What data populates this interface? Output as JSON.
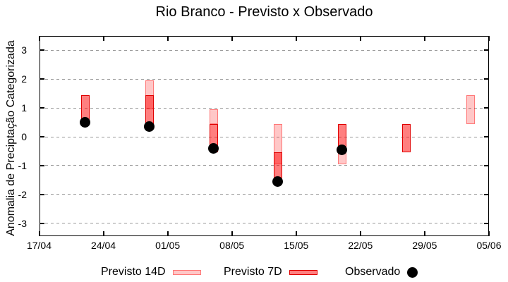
{
  "title": "Rio Branco - Previsto x Observado",
  "colors": {
    "background": "#ffffff",
    "axis": "#000000",
    "grid": "#999999",
    "forecast_14d_fill": "rgba(255,0,0,0.22)",
    "forecast_14d_border": "rgba(255,0,0,0.4)",
    "forecast_7d_fill": "rgba(255,0,0,0.5)",
    "forecast_7d_border": "#e00000",
    "observed": "#000000"
  },
  "chart_data": {
    "type": "bar",
    "subtype": "range-bars-with-scatter",
    "title": "Rio Branco - Previsto x Observado",
    "xlabel": "",
    "ylabel": "Anomalia de Preciptação Categorizada",
    "x_tick_labels": [
      "17/04",
      "24/04",
      "01/05",
      "08/05",
      "15/05",
      "22/05",
      "29/05",
      "05/06"
    ],
    "x_tick_days": [
      0,
      7,
      14,
      21,
      28,
      35,
      42,
      49
    ],
    "xlim_days": [
      0,
      49
    ],
    "y_ticks": [
      3,
      2,
      1,
      0,
      -1,
      -2,
      -3
    ],
    "ylim": [
      -3.45,
      3.5
    ],
    "grid": "horizontal-dashed",
    "legend_position": "below-center",
    "series": [
      {
        "name": "Previsto 14D",
        "type": "range-bar",
        "fill": "rgba(255,0,0,0.22)",
        "border": "rgba(255,0,0,0.4)",
        "points": [
          {
            "date": "29/04",
            "day": 12,
            "low": 0.95,
            "high": 1.95
          },
          {
            "date": "06/05",
            "day": 19,
            "low": 0.45,
            "high": 0.95
          },
          {
            "date": "13/05",
            "day": 26,
            "low": -0.95,
            "high": 0.45
          },
          {
            "date": "20/05",
            "day": 33,
            "low": -0.95,
            "high": -0.55
          },
          {
            "date": "03/06",
            "day": 47,
            "low": 0.45,
            "high": 1.45
          }
        ]
      },
      {
        "name": "Previsto 7D",
        "type": "range-bar",
        "fill": "rgba(255,0,0,0.5)",
        "border": "#e00000",
        "points": [
          {
            "date": "22/04",
            "day": 5,
            "low": 0.45,
            "high": 1.45
          },
          {
            "date": "29/04",
            "day": 12,
            "low": 0.45,
            "high": 1.45
          },
          {
            "date": "06/05",
            "day": 19,
            "low": -0.55,
            "high": 0.45
          },
          {
            "date": "13/05",
            "day": 26,
            "low": -1.45,
            "high": -0.55
          },
          {
            "date": "20/05",
            "day": 33,
            "low": -0.55,
            "high": 0.45
          },
          {
            "date": "27/05",
            "day": 40,
            "low": -0.55,
            "high": 0.45
          }
        ]
      },
      {
        "name": "Observado",
        "type": "scatter",
        "color": "#000000",
        "points": [
          {
            "date": "22/04",
            "day": 5,
            "value": 0.5
          },
          {
            "date": "29/04",
            "day": 12,
            "value": 0.35
          },
          {
            "date": "06/05",
            "day": 19,
            "value": -0.4
          },
          {
            "date": "13/05",
            "day": 26,
            "value": -1.55
          },
          {
            "date": "20/05",
            "day": 33,
            "value": -0.45
          }
        ]
      }
    ],
    "legend": [
      {
        "label": "Previsto 14D",
        "swatch": "box-14d"
      },
      {
        "label": "Previsto 7D",
        "swatch": "box-7d"
      },
      {
        "label": "Observado",
        "swatch": "dot"
      }
    ]
  }
}
